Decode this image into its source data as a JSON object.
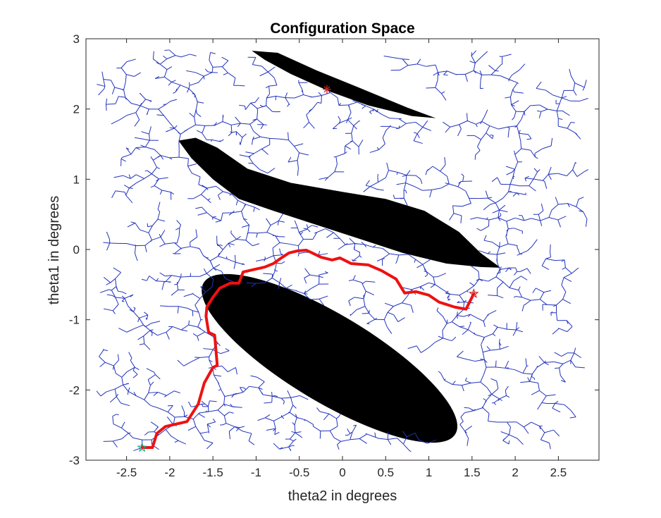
{
  "chart_data": {
    "type": "scatter",
    "title": "Configuration Space",
    "xlabel": "theta2 in degrees",
    "ylabel": "theta1 in degrees",
    "xlim": [
      -2.97,
      2.97
    ],
    "ylim": [
      -3.0,
      3.0
    ],
    "x_ticks": [
      "-2.5",
      "-2",
      "-1.5",
      "-1",
      "-0.5",
      "0",
      "0.5",
      "1",
      "1.5",
      "2",
      "2.5"
    ],
    "y_ticks": [
      "3",
      "2",
      "1",
      "0",
      "-1",
      "-2",
      "-3"
    ],
    "grid": false,
    "colors": {
      "tree": "#2233bb",
      "path": "#ee1111",
      "obstacle": "#000000",
      "start": "#22aa88",
      "goal": "#cc2222"
    },
    "obstacles": [
      {
        "name": "upper-sliver",
        "points": [
          [
            -1.05,
            2.83
          ],
          [
            -0.75,
            2.8
          ],
          [
            -0.3,
            2.55
          ],
          [
            0.2,
            2.3
          ],
          [
            0.75,
            2.02
          ],
          [
            1.08,
            1.87
          ],
          [
            0.8,
            1.9
          ],
          [
            0.3,
            2.05
          ],
          [
            -0.15,
            2.25
          ],
          [
            -0.6,
            2.5
          ],
          [
            -0.9,
            2.7
          ]
        ]
      },
      {
        "name": "middle-band",
        "points": [
          [
            -1.9,
            1.55
          ],
          [
            -1.7,
            1.59
          ],
          [
            -1.45,
            1.45
          ],
          [
            -1.1,
            1.15
          ],
          [
            -0.6,
            0.95
          ],
          [
            0,
            0.82
          ],
          [
            0.5,
            0.72
          ],
          [
            0.95,
            0.55
          ],
          [
            1.35,
            0.25
          ],
          [
            1.6,
            -0.05
          ],
          [
            1.83,
            -0.26
          ],
          [
            1.6,
            -0.25
          ],
          [
            1.2,
            -0.2
          ],
          [
            0.7,
            -0.05
          ],
          [
            0.2,
            0.15
          ],
          [
            -0.3,
            0.35
          ],
          [
            -0.8,
            0.55
          ],
          [
            -1.2,
            0.72
          ],
          [
            -1.5,
            1.0
          ],
          [
            -1.75,
            1.3
          ]
        ]
      },
      {
        "name": "lower-ellipse",
        "cx": -0.15,
        "cy": -1.55,
        "rx": 1.7,
        "ry": 0.62,
        "angle_deg": -31
      }
    ],
    "start_point": [
      -2.32,
      -2.82
    ],
    "goal_point": [
      1.52,
      -0.63
    ],
    "extra_marker": [
      -0.18,
      2.28
    ],
    "path": [
      [
        -2.32,
        -2.82
      ],
      [
        -2.2,
        -2.82
      ],
      [
        -2.15,
        -2.62
      ],
      [
        -2.05,
        -2.52
      ],
      [
        -1.8,
        -2.45
      ],
      [
        -1.67,
        -2.2
      ],
      [
        -1.6,
        -1.9
      ],
      [
        -1.5,
        -1.68
      ],
      [
        -1.45,
        -1.65
      ],
      [
        -1.48,
        -1.22
      ],
      [
        -1.55,
        -1.18
      ],
      [
        -1.58,
        -0.95
      ],
      [
        -1.57,
        -0.82
      ],
      [
        -1.5,
        -0.68
      ],
      [
        -1.42,
        -0.55
      ],
      [
        -1.3,
        -0.48
      ],
      [
        -1.2,
        -0.48
      ],
      [
        -1.15,
        -0.32
      ],
      [
        -0.9,
        -0.25
      ],
      [
        -0.8,
        -0.2
      ],
      [
        -0.72,
        -0.13
      ],
      [
        -0.62,
        -0.05
      ],
      [
        -0.52,
        -0.02
      ],
      [
        -0.42,
        -0.01
      ],
      [
        -0.35,
        -0.05
      ],
      [
        -0.25,
        -0.11
      ],
      [
        -0.12,
        -0.15
      ],
      [
        -0.03,
        -0.12
      ],
      [
        0.1,
        -0.2
      ],
      [
        0.3,
        -0.22
      ],
      [
        0.45,
        -0.3
      ],
      [
        0.62,
        -0.42
      ],
      [
        0.72,
        -0.62
      ],
      [
        0.85,
        -0.6
      ],
      [
        1.0,
        -0.65
      ],
      [
        1.12,
        -0.75
      ],
      [
        1.3,
        -0.82
      ],
      [
        1.43,
        -0.85
      ],
      [
        1.52,
        -0.63
      ]
    ]
  }
}
